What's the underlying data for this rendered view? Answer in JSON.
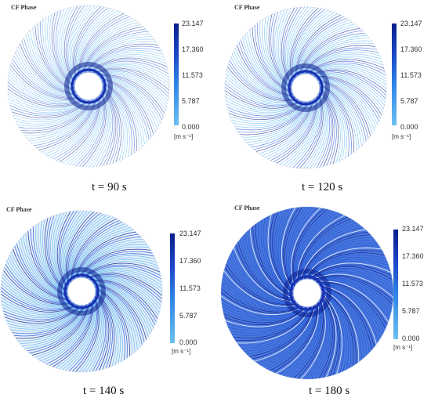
{
  "panels": [
    {
      "phase": "CF Phase",
      "caption": "t = 90 s",
      "intensity": 0.35
    },
    {
      "phase": "CF Phase",
      "caption": "t = 120 s",
      "intensity": 0.5
    },
    {
      "phase": "CF Phase",
      "caption": "t = 140 s",
      "intensity": 0.75
    },
    {
      "phase": "CF Phase",
      "caption": "t = 180 s",
      "intensity": 1.0
    }
  ],
  "legend": {
    "ticks": [
      "23.147",
      "17.360",
      "11.573",
      "5.787",
      "0.000"
    ],
    "unit": "[m s⁻¹]"
  },
  "colors": {
    "dark": "#0b1e8c",
    "mid": "#1f55d6",
    "light": "#5fb6f0",
    "hub": "#1a2fb0"
  }
}
